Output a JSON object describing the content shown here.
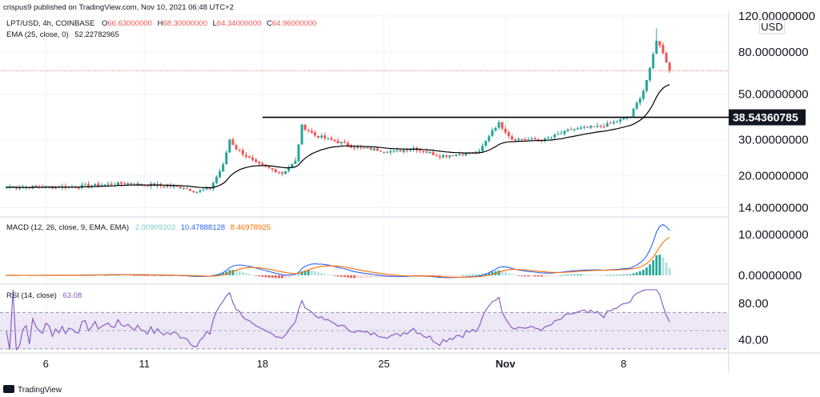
{
  "header": {
    "published": "crispus9 published on TradingView.com, Nov 10, 2021 06:48 UTC+2"
  },
  "legend": {
    "symbol": "LPT/USD, 4h, COINBASE",
    "o_label": "O",
    "o_value": "66.63000000",
    "h_label": "H",
    "h_value": "68.30000000",
    "l_label": "L",
    "l_value": "64.34000000",
    "c_label": "C",
    "c_value": "64.96000000",
    "ema_label": "EMA (25, close, 0)",
    "ema_value": "52.22782965",
    "macd_label": "MACD (12, 26, close, 9, EMA, EMA)",
    "macd_hist": "2.00909203",
    "macd_line": "10.47888128",
    "macd_signal": "8.46978925",
    "rsi_label": "RSI (14, close)",
    "rsi_value": "63.08"
  },
  "currency": "USD",
  "resistance_label": "38.54360785",
  "footer": {
    "brand": "TradingView"
  },
  "colors": {
    "up": "#26a69a",
    "down": "#ef5350",
    "ema": "#000000",
    "macd": "#2962ff",
    "signal": "#ff6d00",
    "rsi": "#7e57c2",
    "rsi_band": "#ede7f6",
    "hist_up": "#26a69a",
    "hist_up_light": "#b2dfdb",
    "hist_down": "#ef5350",
    "hist_down_light": "#ffcdd2"
  },
  "chart_data": [
    {
      "type": "candlestick",
      "scale": "log",
      "y_ticks": [
        "120.00000000",
        "80.00000000",
        "50.00000000",
        "30.00000000",
        "20.00000000",
        "14.00000000"
      ],
      "y_tick_values": [
        120,
        80,
        50,
        30,
        20,
        14
      ],
      "ylim": [
        13.2,
        120
      ],
      "x_tick_labels": [
        "6",
        "11",
        "18",
        "25",
        "Nov",
        "8"
      ],
      "x_tick_index": [
        12,
        42,
        78,
        115,
        152,
        188
      ],
      "resistance_level": 38.54360785,
      "resistance_start_index": 78,
      "anchors": [
        [
          0,
          17.6
        ],
        [
          20,
          17.7
        ],
        [
          36,
          18.4
        ],
        [
          54,
          17.6
        ],
        [
          58,
          16.7
        ],
        [
          62,
          17.4
        ],
        [
          66,
          22.5
        ],
        [
          68,
          30.1
        ],
        [
          70,
          27.2
        ],
        [
          76,
          23.0
        ],
        [
          84,
          20.6
        ],
        [
          88,
          23.5
        ],
        [
          90,
          35.0
        ],
        [
          94,
          31.5
        ],
        [
          98,
          30.2
        ],
        [
          106,
          27.6
        ],
        [
          118,
          26.2
        ],
        [
          124,
          27.3
        ],
        [
          132,
          25.0
        ],
        [
          144,
          26.0
        ],
        [
          148,
          33.5
        ],
        [
          150,
          36.0
        ],
        [
          154,
          30.2
        ],
        [
          164,
          30.0
        ],
        [
          172,
          33.6
        ],
        [
          182,
          35.0
        ],
        [
          190,
          39.0
        ],
        [
          194,
          52.0
        ],
        [
          196,
          66.0
        ],
        [
          198,
          92.0
        ],
        [
          200,
          80.0
        ],
        [
          202,
          64.96
        ]
      ],
      "ema_period": 25
    },
    {
      "type": "macd",
      "y_ticks": [
        "10.00000000",
        "0.00000000"
      ],
      "y_tick_values": [
        10,
        0
      ],
      "ylim": [
        -1.0,
        12.0
      ],
      "series": [
        {
          "name": "MACD"
        },
        {
          "name": "Signal"
        },
        {
          "name": "Histogram"
        }
      ]
    },
    {
      "type": "rsi",
      "y_ticks": [
        "80.00",
        "40.00"
      ],
      "y_tick_values": [
        80,
        40
      ],
      "ylim": [
        29,
        95
      ],
      "band": [
        30,
        70
      ],
      "mid": 50
    }
  ]
}
